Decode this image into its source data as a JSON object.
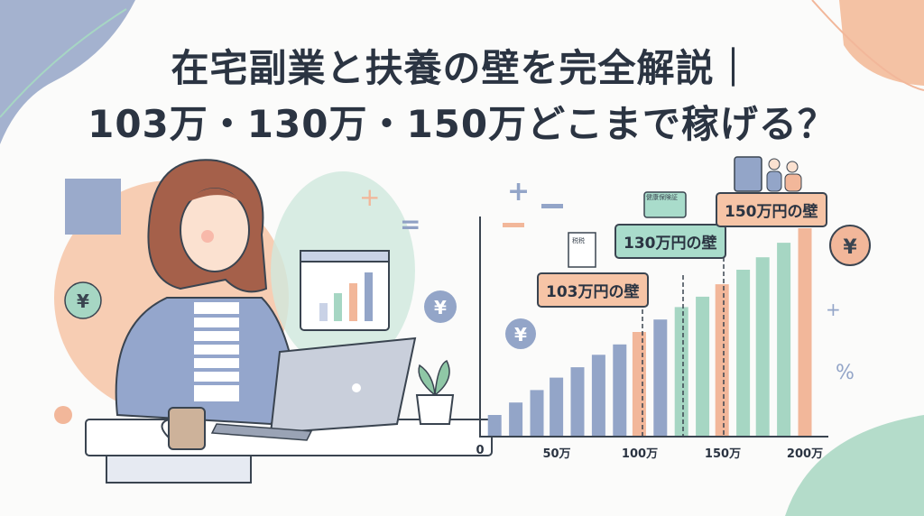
{
  "title": {
    "line1": "在宅副業と扶養の壁を完全解説｜",
    "line2": "103万・130万・150万どこまで稼げる？"
  },
  "chart_data": {
    "type": "bar",
    "xlabel": "",
    "ylabel": "",
    "x_ticks": [
      "0",
      "50万",
      "100万",
      "150万",
      "200万"
    ],
    "x_tick_values": [
      0,
      50,
      100,
      150,
      200
    ],
    "xlim": [
      0,
      200
    ],
    "bar_x_man_yen": [
      9,
      22,
      35,
      47,
      60,
      73,
      86,
      98,
      111,
      124,
      137,
      149,
      162,
      174,
      187,
      200
    ],
    "bar_relative_heights": [
      10,
      16,
      22,
      28,
      33,
      39,
      44,
      50,
      56,
      62,
      67,
      73,
      80,
      86,
      93,
      100
    ],
    "bar_colors": [
      "blue",
      "blue",
      "blue",
      "blue",
      "blue",
      "blue",
      "blue",
      "orange",
      "blue",
      "green",
      "green",
      "orange",
      "green",
      "green",
      "green",
      "orange"
    ],
    "walls": [
      {
        "label": "103万円の壁",
        "x": 100,
        "color": "orange"
      },
      {
        "label": "130万円の壁",
        "x": 125,
        "color": "green"
      },
      {
        "label": "150万円の壁",
        "x": 150,
        "color": "orange"
      }
    ],
    "grid": false
  },
  "icons": {
    "tax_doc_label": "税税",
    "insurance_card_label": "健康保険証",
    "yen": "¥",
    "percent": "%"
  },
  "colors": {
    "blue": "#93a5c8",
    "green": "#a6d6c3",
    "orange": "#f2b79a",
    "text": "#2b3442",
    "callout_orange": "#f6c4a6",
    "callout_green": "#a9dccb"
  }
}
